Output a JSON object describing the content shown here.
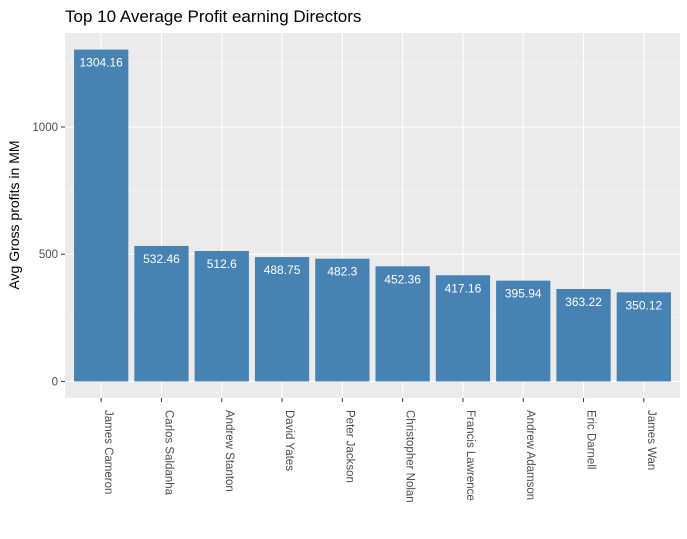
{
  "chart_data": {
    "type": "bar",
    "title": "Top 10 Average Profit earning Directors",
    "xlabel": "",
    "ylabel": "Avg Gross profits in MM",
    "categories": [
      "James Cameron",
      "Carlos Saldanha",
      "Andrew Stanton",
      "David Yates",
      "Peter Jackson",
      "Christopher Nolan",
      "Francis Lawrence",
      "Andrew Adamson",
      "Eric Darnell",
      "James Wan"
    ],
    "values": [
      1304.16,
      532.46,
      512.6,
      488.75,
      482.3,
      452.36,
      417.16,
      395.94,
      363.22,
      350.12
    ],
    "data_labels": [
      "1304.16",
      "532.46",
      "512.6",
      "488.75",
      "482.3",
      "452.36",
      "417.16",
      "395.94",
      "363.22",
      "350.12"
    ],
    "yticks": [
      0,
      500,
      1000
    ],
    "ytick_labels": [
      "0",
      "500",
      "1000"
    ],
    "ylim": [
      -65.2,
      1369.4
    ],
    "grid": true,
    "legend": "none",
    "colors": {
      "bar": "#4682b4",
      "panel_background": "#ebebeb",
      "grid_major": "#ffffff",
      "grid_minor": "#f5f5f5",
      "data_label": "#ffffff",
      "tick_text": "#4d4d4d",
      "title_text": "#000000"
    }
  }
}
